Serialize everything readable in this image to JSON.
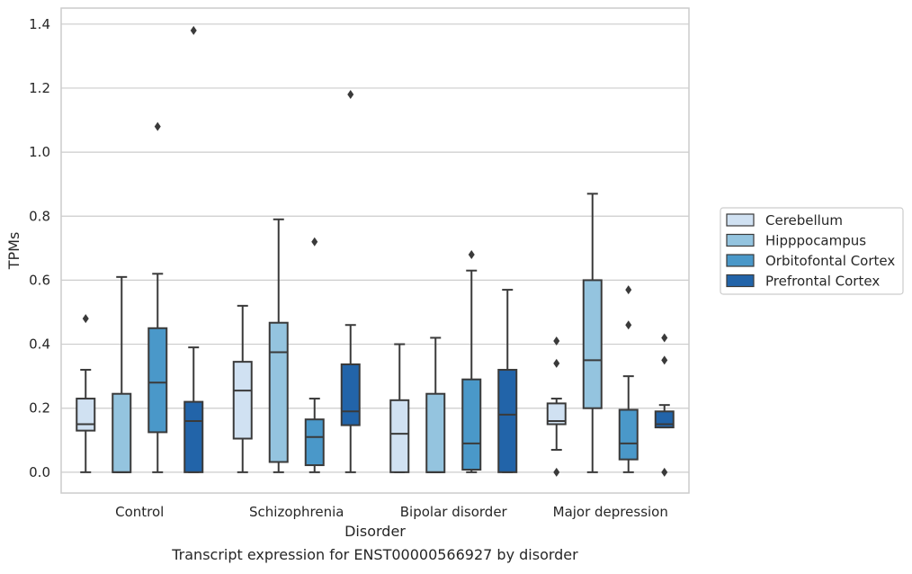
{
  "chart_data": {
    "type": "boxplot",
    "title": "",
    "caption": "Transcript expression for ENST00000566927 by disorder",
    "xlabel": "Disorder",
    "ylabel": "TPMs",
    "ylim": [
      -0.065,
      1.45
    ],
    "yticks": [
      "0.0",
      "0.2",
      "0.4",
      "0.6",
      "0.8",
      "1.0",
      "1.2",
      "1.4"
    ],
    "ytick_values": [
      0,
      0.2,
      0.4,
      0.6,
      0.8,
      1.0,
      1.2,
      1.4
    ],
    "grid": "horizontal",
    "legend_position": "right",
    "categories": [
      "Control",
      "Schizophrenia",
      "Bipolar disorder",
      "Major depression"
    ],
    "series": [
      {
        "name": "Cerebellum",
        "color": "#d0e1f2",
        "boxes": [
          {
            "whislo": 0.0,
            "q1": 0.13,
            "med": 0.15,
            "q3": 0.23,
            "whishi": 0.32,
            "fliers": [
              0.48
            ]
          },
          {
            "whislo": 0.0,
            "q1": 0.105,
            "med": 0.255,
            "q3": 0.345,
            "whishi": 0.52,
            "fliers": []
          },
          {
            "whislo": 0.0,
            "q1": 0.0,
            "med": 0.12,
            "q3": 0.225,
            "whishi": 0.4,
            "fliers": []
          },
          {
            "whislo": 0.07,
            "q1": 0.15,
            "med": 0.16,
            "q3": 0.215,
            "whishi": 0.23,
            "fliers": [
              0.41,
              0.34,
              0.0
            ]
          }
        ]
      },
      {
        "name": "Hipppocampus",
        "color": "#94c4df",
        "boxes": [
          {
            "whislo": 0.0,
            "q1": 0.0,
            "med": 0.0,
            "q3": 0.245,
            "whishi": 0.61,
            "fliers": []
          },
          {
            "whislo": 0.0,
            "q1": 0.032,
            "med": 0.375,
            "q3": 0.467,
            "whishi": 0.79,
            "fliers": []
          },
          {
            "whislo": 0.0,
            "q1": 0.0,
            "med": 0.0,
            "q3": 0.245,
            "whishi": 0.42,
            "fliers": []
          },
          {
            "whislo": 0.0,
            "q1": 0.2,
            "med": 0.35,
            "q3": 0.6,
            "whishi": 0.87,
            "fliers": []
          }
        ]
      },
      {
        "name": "Orbitofontal Cortex",
        "color": "#4a98c9",
        "boxes": [
          {
            "whislo": 0.0,
            "q1": 0.125,
            "med": 0.28,
            "q3": 0.45,
            "whishi": 0.62,
            "fliers": [
              1.08
            ]
          },
          {
            "whislo": 0.0,
            "q1": 0.022,
            "med": 0.11,
            "q3": 0.165,
            "whishi": 0.23,
            "fliers": [
              0.72
            ]
          },
          {
            "whislo": 0.0,
            "q1": 0.008,
            "med": 0.09,
            "q3": 0.29,
            "whishi": 0.63,
            "fliers": [
              0.68
            ]
          },
          {
            "whislo": 0.0,
            "q1": 0.04,
            "med": 0.09,
            "q3": 0.195,
            "whishi": 0.3,
            "fliers": [
              0.57,
              0.46
            ]
          }
        ]
      },
      {
        "name": "Prefrontal Cortex",
        "color": "#2264a9",
        "boxes": [
          {
            "whislo": 0.0,
            "q1": 0.0,
            "med": 0.16,
            "q3": 0.22,
            "whishi": 0.39,
            "fliers": [
              1.38
            ]
          },
          {
            "whislo": 0.0,
            "q1": 0.147,
            "med": 0.19,
            "q3": 0.337,
            "whishi": 0.46,
            "fliers": [
              1.18
            ]
          },
          {
            "whislo": 0.0,
            "q1": 0.0,
            "med": 0.18,
            "q3": 0.32,
            "whishi": 0.57,
            "fliers": []
          },
          {
            "whislo": 0.14,
            "q1": 0.14,
            "med": 0.15,
            "q3": 0.19,
            "whishi": 0.21,
            "fliers": [
              0.42,
              0.35,
              0.0
            ]
          }
        ]
      }
    ]
  }
}
